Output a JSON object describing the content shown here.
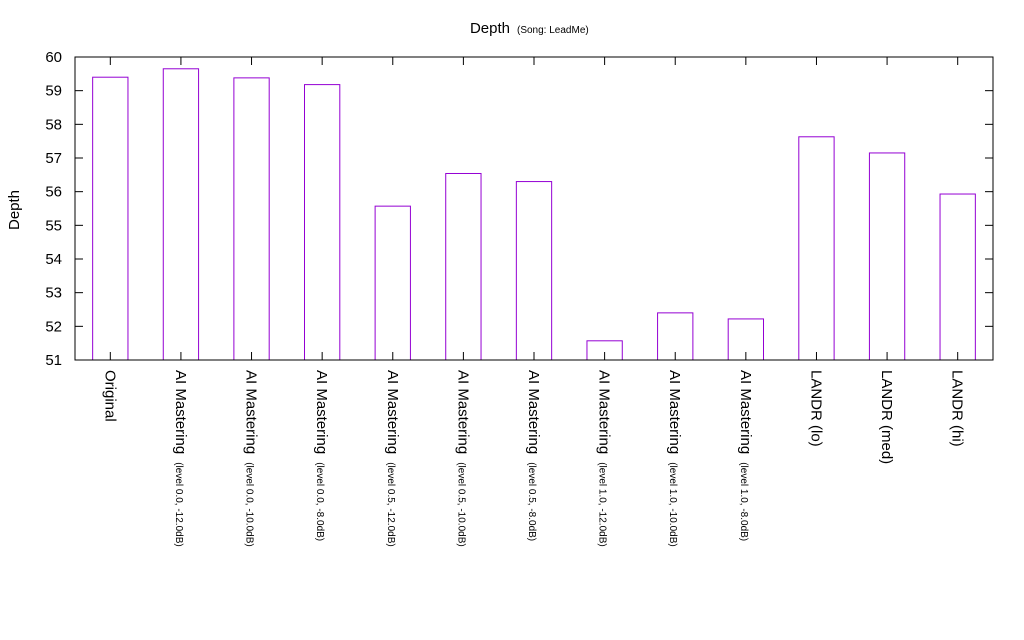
{
  "chart_data": {
    "type": "bar",
    "title": "Depth",
    "subtitle": "(Song: LeadMe)",
    "xlabel": "",
    "ylabel": "Depth",
    "ylim": [
      51,
      60
    ],
    "yticks": [
      51,
      52,
      53,
      54,
      55,
      56,
      57,
      58,
      59,
      60
    ],
    "grid": false,
    "legend": "none",
    "bar_color": "#9400d3",
    "categories": [
      {
        "main": "Original",
        "sub": ""
      },
      {
        "main": "AI Mastering",
        "sub": "(level 0.0, -12.0dB)"
      },
      {
        "main": "AI Mastering",
        "sub": "(level 0.0, -10.0dB)"
      },
      {
        "main": "AI Mastering",
        "sub": "(level 0.0, -8.0dB)"
      },
      {
        "main": "AI Mastering",
        "sub": "(level 0.5, -12.0dB)"
      },
      {
        "main": "AI Mastering",
        "sub": "(level 0.5, -10.0dB)"
      },
      {
        "main": "AI Mastering",
        "sub": "(level 0.5, -8.0dB)"
      },
      {
        "main": "AI Mastering",
        "sub": "(level 1.0, -12.0dB)"
      },
      {
        "main": "AI Mastering",
        "sub": "(level 1.0, -10.0dB)"
      },
      {
        "main": "AI Mastering",
        "sub": "(level 1.0, -8.0dB)"
      },
      {
        "main": "LANDR (lo)",
        "sub": ""
      },
      {
        "main": "LANDR (med)",
        "sub": ""
      },
      {
        "main": "LANDR (hi)",
        "sub": ""
      }
    ],
    "values": [
      59.4,
      59.65,
      59.38,
      59.18,
      55.57,
      56.54,
      56.3,
      51.57,
      52.4,
      52.22,
      57.63,
      57.15,
      55.93
    ]
  }
}
